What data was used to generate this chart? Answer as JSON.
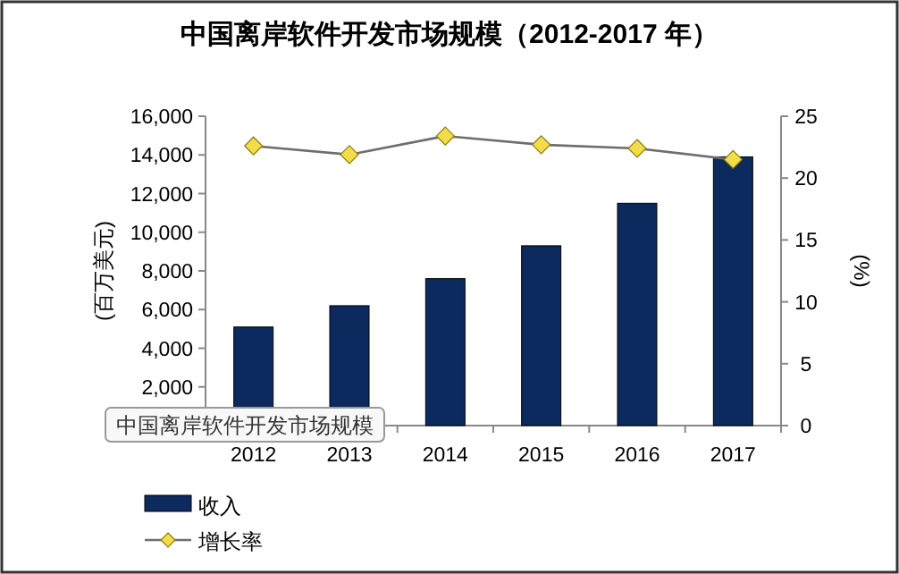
{
  "chart_data": {
    "type": "bar",
    "title": "中国离岸软件开发市场规模（2012-2017 年）",
    "ylabel": "(百万美元)",
    "y2label": "(%)",
    "categories": [
      "2012",
      "2013",
      "2014",
      "2015",
      "2016",
      "2017"
    ],
    "series": [
      {
        "name": "收入",
        "color": "#0c2a5e",
        "values": [
          5100,
          6200,
          7600,
          9300,
          11500,
          13900
        ]
      },
      {
        "name": "增长率",
        "type": "line",
        "axis": "y2",
        "color": "#f2dc4a",
        "marker": "diamond",
        "values": [
          22.6,
          21.9,
          23.4,
          22.7,
          22.4,
          21.5
        ]
      }
    ],
    "ylim": [
      0,
      16000
    ],
    "yticks": [
      {
        "value": 0,
        "label": null
      },
      {
        "value": 2000,
        "label": "2,000"
      },
      {
        "value": 4000,
        "label": "4,000"
      },
      {
        "value": 6000,
        "label": "6,000"
      },
      {
        "value": 8000,
        "label": "8,000"
      },
      {
        "value": 10000,
        "label": "10,000"
      },
      {
        "value": 12000,
        "label": "12,000"
      },
      {
        "value": 14000,
        "label": "14,000"
      },
      {
        "value": 16000,
        "label": "16,000"
      }
    ],
    "y2lim": [
      0,
      25
    ],
    "y2ticks": [
      0,
      5,
      10,
      15,
      20,
      25
    ],
    "legend": "bottom left",
    "grid": false,
    "annotations": [
      "中国离岸软件开发市场规模"
    ]
  }
}
